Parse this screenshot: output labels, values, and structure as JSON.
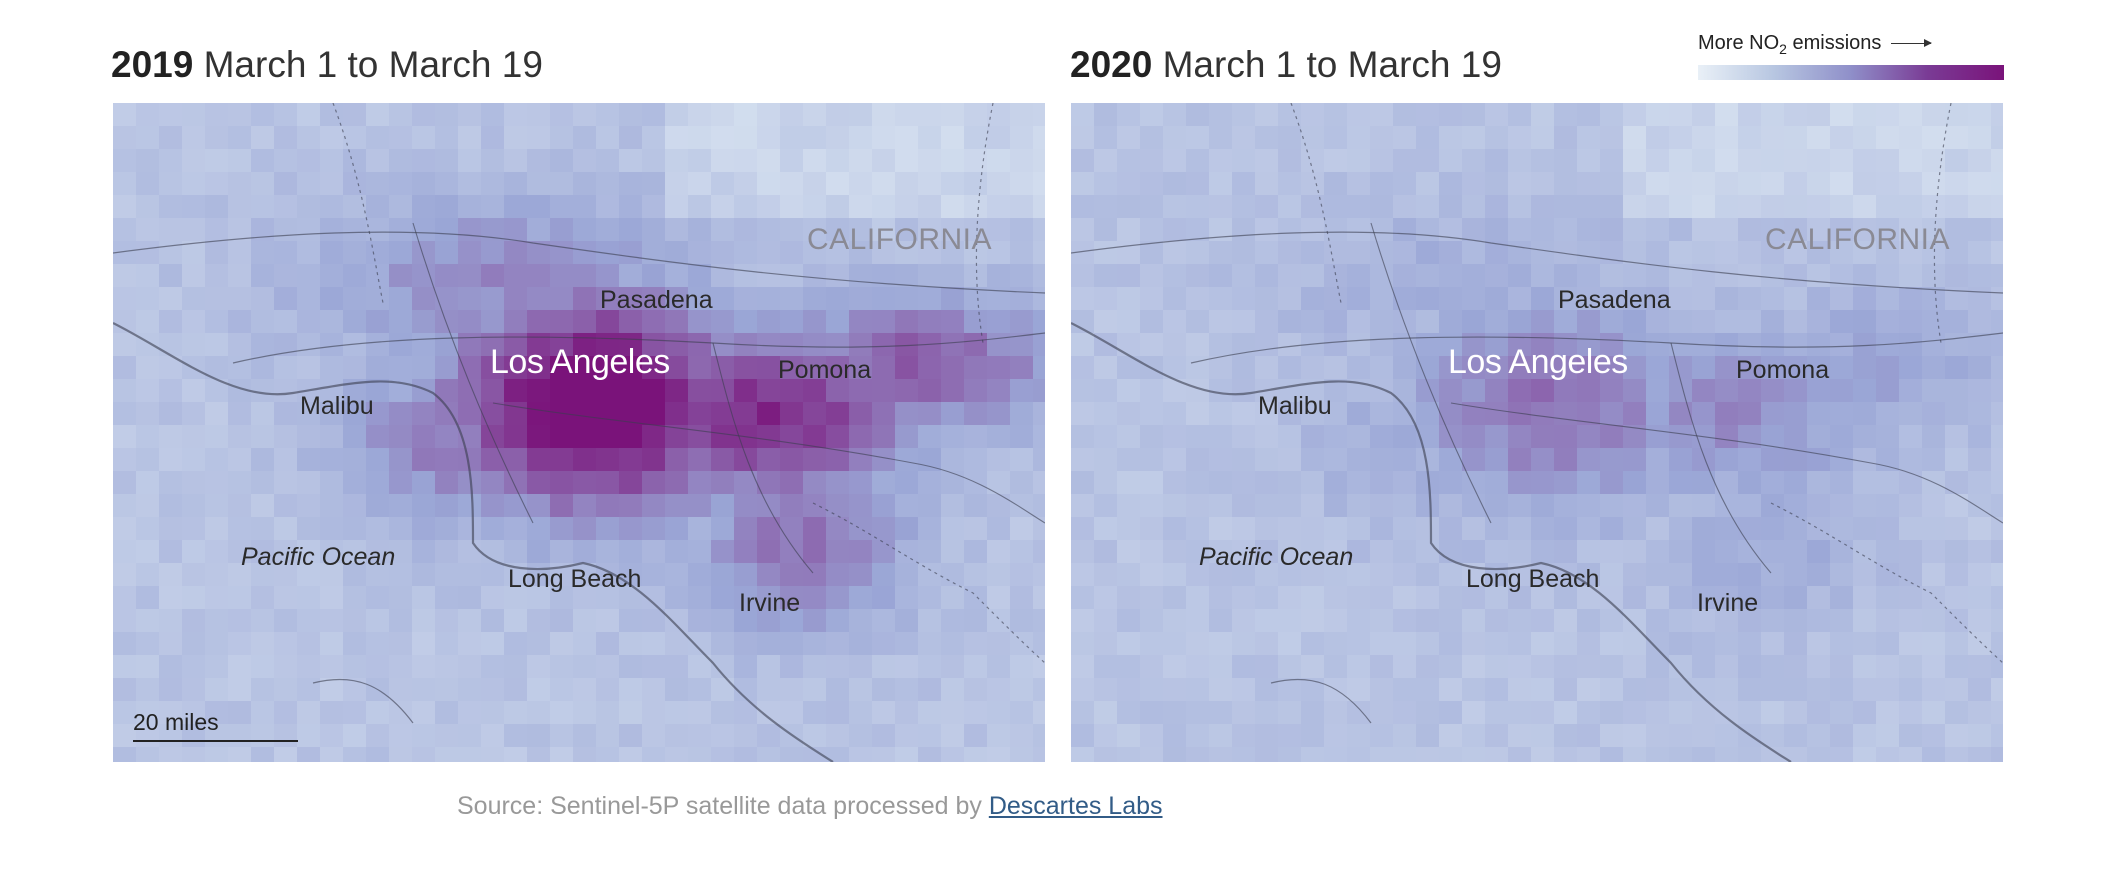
{
  "legend": {
    "label_prefix": "More NO",
    "label_sub": "2",
    "label_suffix": " emissions"
  },
  "panels": [
    {
      "year": "2019",
      "range": "March 1 to March 19",
      "intensity": 1.0,
      "labels": {
        "state": "CALIFORNIA",
        "pasadena": "Pasadena",
        "los_angeles": "Los Angeles",
        "pomona": "Pomona",
        "malibu": "Malibu",
        "ocean": "Pacific Ocean",
        "long_beach": "Long Beach",
        "irvine": "Irvine"
      },
      "scale_label": "20 miles"
    },
    {
      "year": "2020",
      "range": "March 1 to March 19",
      "intensity": 0.45,
      "labels": {
        "state": "CALIFORNIA",
        "pasadena": "Pasadena",
        "los_angeles": "Los Angeles",
        "pomona": "Pomona",
        "malibu": "Malibu",
        "ocean": "Pacific Ocean",
        "long_beach": "Long Beach",
        "irvine": "Irvine"
      }
    }
  ],
  "source": {
    "prefix": "Source: Sentinel-5P satellite data processed by ",
    "link_text": "Descartes Labs"
  },
  "colors": {
    "low": "#dbe6f2",
    "mid": "#9aa6d6",
    "high": "#7a137a"
  }
}
